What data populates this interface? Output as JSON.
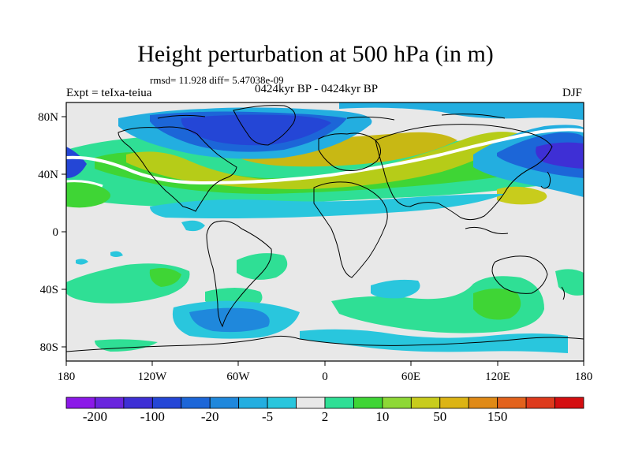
{
  "title": "Height perturbation at 500 hPa (in m)",
  "stats": {
    "rmsd": "11.928",
    "diff": "5.47038e-09",
    "text": "rmsd= 11.928 diff= 5.47038e-09"
  },
  "experiment_label": "Expt = teIxa-teiua",
  "subtitle": "0424kyr BP - 0424kyr BP",
  "season": "DJF",
  "map": {
    "projection": "cylindrical equidistant",
    "lon_range": [
      -180,
      180
    ],
    "lat_range": [
      -90,
      90
    ],
    "lon_ticks": [
      "180",
      "120W",
      "60W",
      "0",
      "60E",
      "120E",
      "180"
    ],
    "lat_ticks": [
      "80N",
      "40N",
      "0",
      "40S",
      "80S"
    ],
    "field": "500 hPa geopotential height perturbation (m)",
    "features": [
      {
        "name": "negative-anomaly-north-america-greenland",
        "sign": "negative",
        "peak_level": "-100"
      },
      {
        "name": "positive-anomaly-atlantic-europe-band",
        "sign": "positive",
        "peak_level": "50"
      },
      {
        "name": "negative-anomaly-north-pacific-east-asia",
        "sign": "negative",
        "peak_level": "-100"
      },
      {
        "name": "positive-anomaly-southern-ocean-indian",
        "sign": "positive",
        "peak_level": "10"
      },
      {
        "name": "negative-anomaly-south-america-antarctic",
        "sign": "negative",
        "peak_level": "-20"
      }
    ]
  },
  "colorbar": {
    "colors": [
      "#8b18e8",
      "#6a24de",
      "#3e2fd5",
      "#2446d6",
      "#1c66d8",
      "#1f88dc",
      "#23aee0",
      "#29c6dd",
      "#e8e8e8",
      "#2fdf95",
      "#3fd535",
      "#8ed836",
      "#c8cc1c",
      "#dcb414",
      "#e08a16",
      "#e2621c",
      "#de3a1c",
      "#d40e10"
    ],
    "labels": [
      "-200",
      "-100",
      "-20",
      "-5",
      "2",
      "10",
      "50",
      "150"
    ]
  }
}
